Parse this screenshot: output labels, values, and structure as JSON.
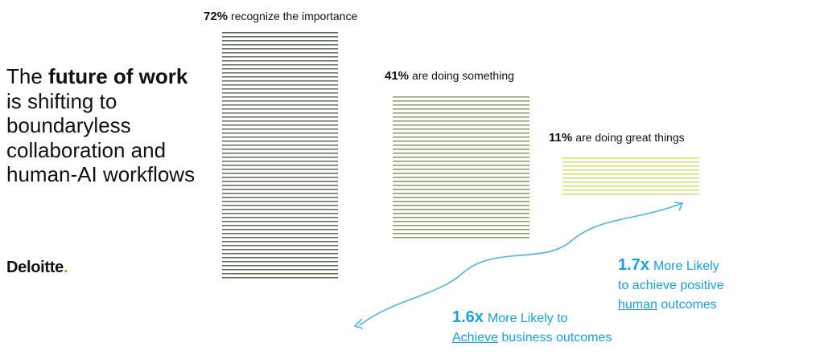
{
  "headline": {
    "part1": "The ",
    "bold1": "future of work",
    "part2": " is shifting to boundaryless collaboration and human-AI workflows"
  },
  "logo": {
    "text": "Deloitte",
    "dot": "."
  },
  "chart_data": {
    "type": "bar",
    "title": "",
    "categories": [
      "recognize the importance",
      "are doing something",
      "are doing great things"
    ],
    "values": [
      72,
      41,
      11
    ],
    "value_labels": [
      "72%",
      "41%",
      "11%"
    ],
    "ylim": [
      0,
      75
    ],
    "grid": false,
    "colors": [
      "#5d6a58",
      "#7f9e5e",
      "#d3dc6e"
    ]
  },
  "callouts": [
    {
      "multiplier": "1.6x",
      "line1_rest": "More Likely to",
      "line2_underlined": "Achieve",
      "line2_rest": " business outcomes"
    },
    {
      "multiplier": "1.7x",
      "line1_rest": "More Likely",
      "line2": "to achieve positive",
      "line3_underlined": "human",
      "line3_rest": " outcomes"
    }
  ],
  "arrow_color": "#4fb3df"
}
